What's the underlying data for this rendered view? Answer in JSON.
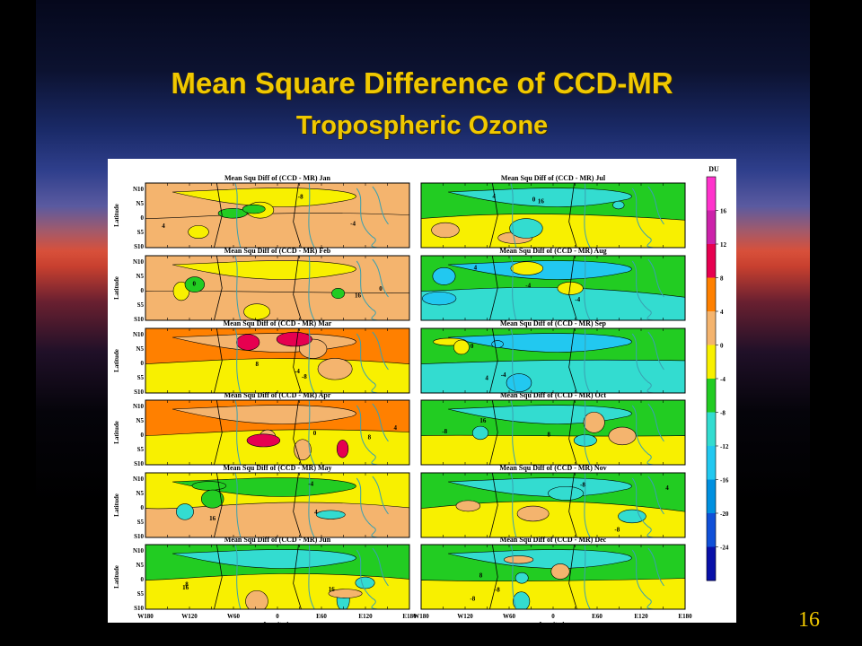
{
  "slide": {
    "title_line1": "Mean Square Difference of CCD-MR",
    "title_line2": "Tropospheric Ozone",
    "page_number": "16"
  },
  "figure": {
    "panel_title_prefix": "Mean Squ Diff of (CCD - MR)",
    "y_axis_label": "Latitude",
    "x_axis_label": "Longitude",
    "lat_ticks": [
      "N10",
      "N5",
      "0",
      "S5",
      "S10"
    ],
    "lon_ticks": [
      "W180",
      "W120",
      "W60",
      "0",
      "E60",
      "E120",
      "E180"
    ],
    "months_left": [
      "Jan",
      "Feb",
      "Mar",
      "Apr",
      "May",
      "Jun"
    ],
    "months_right": [
      "Jul",
      "Aug",
      "Sep",
      "Oct",
      "Nov",
      "Dec"
    ],
    "colorbar": {
      "unit_label": "DU",
      "ticks": [
        "16",
        "12",
        "8",
        "4",
        "0",
        "-4",
        "-8",
        "-12",
        "-16",
        "-20",
        "-24"
      ],
      "colors": [
        "#ff33cc",
        "#cc22aa",
        "#e60050",
        "#ff8000",
        "#f4b46e",
        "#f8f000",
        "#22cc22",
        "#33dcd0",
        "#22c8f0",
        "#0090e0",
        "#1050d8",
        "#0810a8"
      ]
    },
    "panel_fill": {
      "Jan": "warm",
      "Feb": "warm",
      "Mar": "hot",
      "Apr": "hot",
      "May": "mixed",
      "Jun": "cool",
      "Jul": "cool",
      "Aug": "cooler",
      "Sep": "cooler",
      "Oct": "cool",
      "Nov": "cool",
      "Dec": "cool"
    },
    "contour_labels": [
      "0",
      "4",
      "8",
      "-4",
      "-8",
      "16"
    ]
  }
}
